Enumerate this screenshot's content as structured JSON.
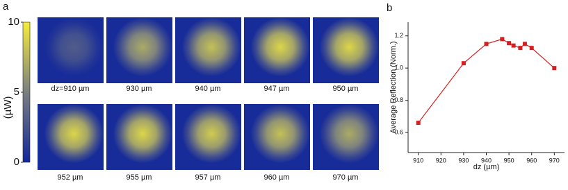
{
  "chart_data": [
    {
      "type": "image-grid",
      "panel": "a",
      "colorbar": {
        "label": "(µW)",
        "lim": [
          0,
          10
        ],
        "ticks": [
          0,
          5,
          10
        ]
      },
      "images": [
        {
          "label": "dz=910 µm",
          "peak": 3
        },
        {
          "label": "930 µm",
          "peak": 7
        },
        {
          "label": "940 µm",
          "peak": 8
        },
        {
          "label": "947 µm",
          "peak": 9
        },
        {
          "label": "950 µm",
          "peak": 9
        },
        {
          "label": "952 µm",
          "peak": 9
        },
        {
          "label": "955 µm",
          "peak": 9
        },
        {
          "label": "957 µm",
          "peak": 8.5
        },
        {
          "label": "960 µm",
          "peak": 8
        },
        {
          "label": "970 µm",
          "peak": 7
        }
      ]
    },
    {
      "type": "line",
      "panel": "b",
      "xlabel": "dz (µm)",
      "ylabel": "Average Reflection (Norm.)",
      "x": [
        910,
        930,
        940,
        947,
        950,
        952,
        955,
        957,
        960,
        970
      ],
      "series": [
        {
          "color": "#d42020",
          "values": [
            0.66,
            1.03,
            1.15,
            1.18,
            1.155,
            1.14,
            1.125,
            1.15,
            1.125,
            1.0
          ]
        }
      ],
      "xlim": [
        905.5,
        974.5
      ],
      "ylim": [
        0.475,
        1.285
      ],
      "xticks": [
        910,
        920,
        930,
        940,
        950,
        960,
        970
      ],
      "yticks": [
        0.6,
        0.8,
        {
          "value": 1.0,
          "label": "1.0"
        },
        1.2
      ]
    }
  ]
}
